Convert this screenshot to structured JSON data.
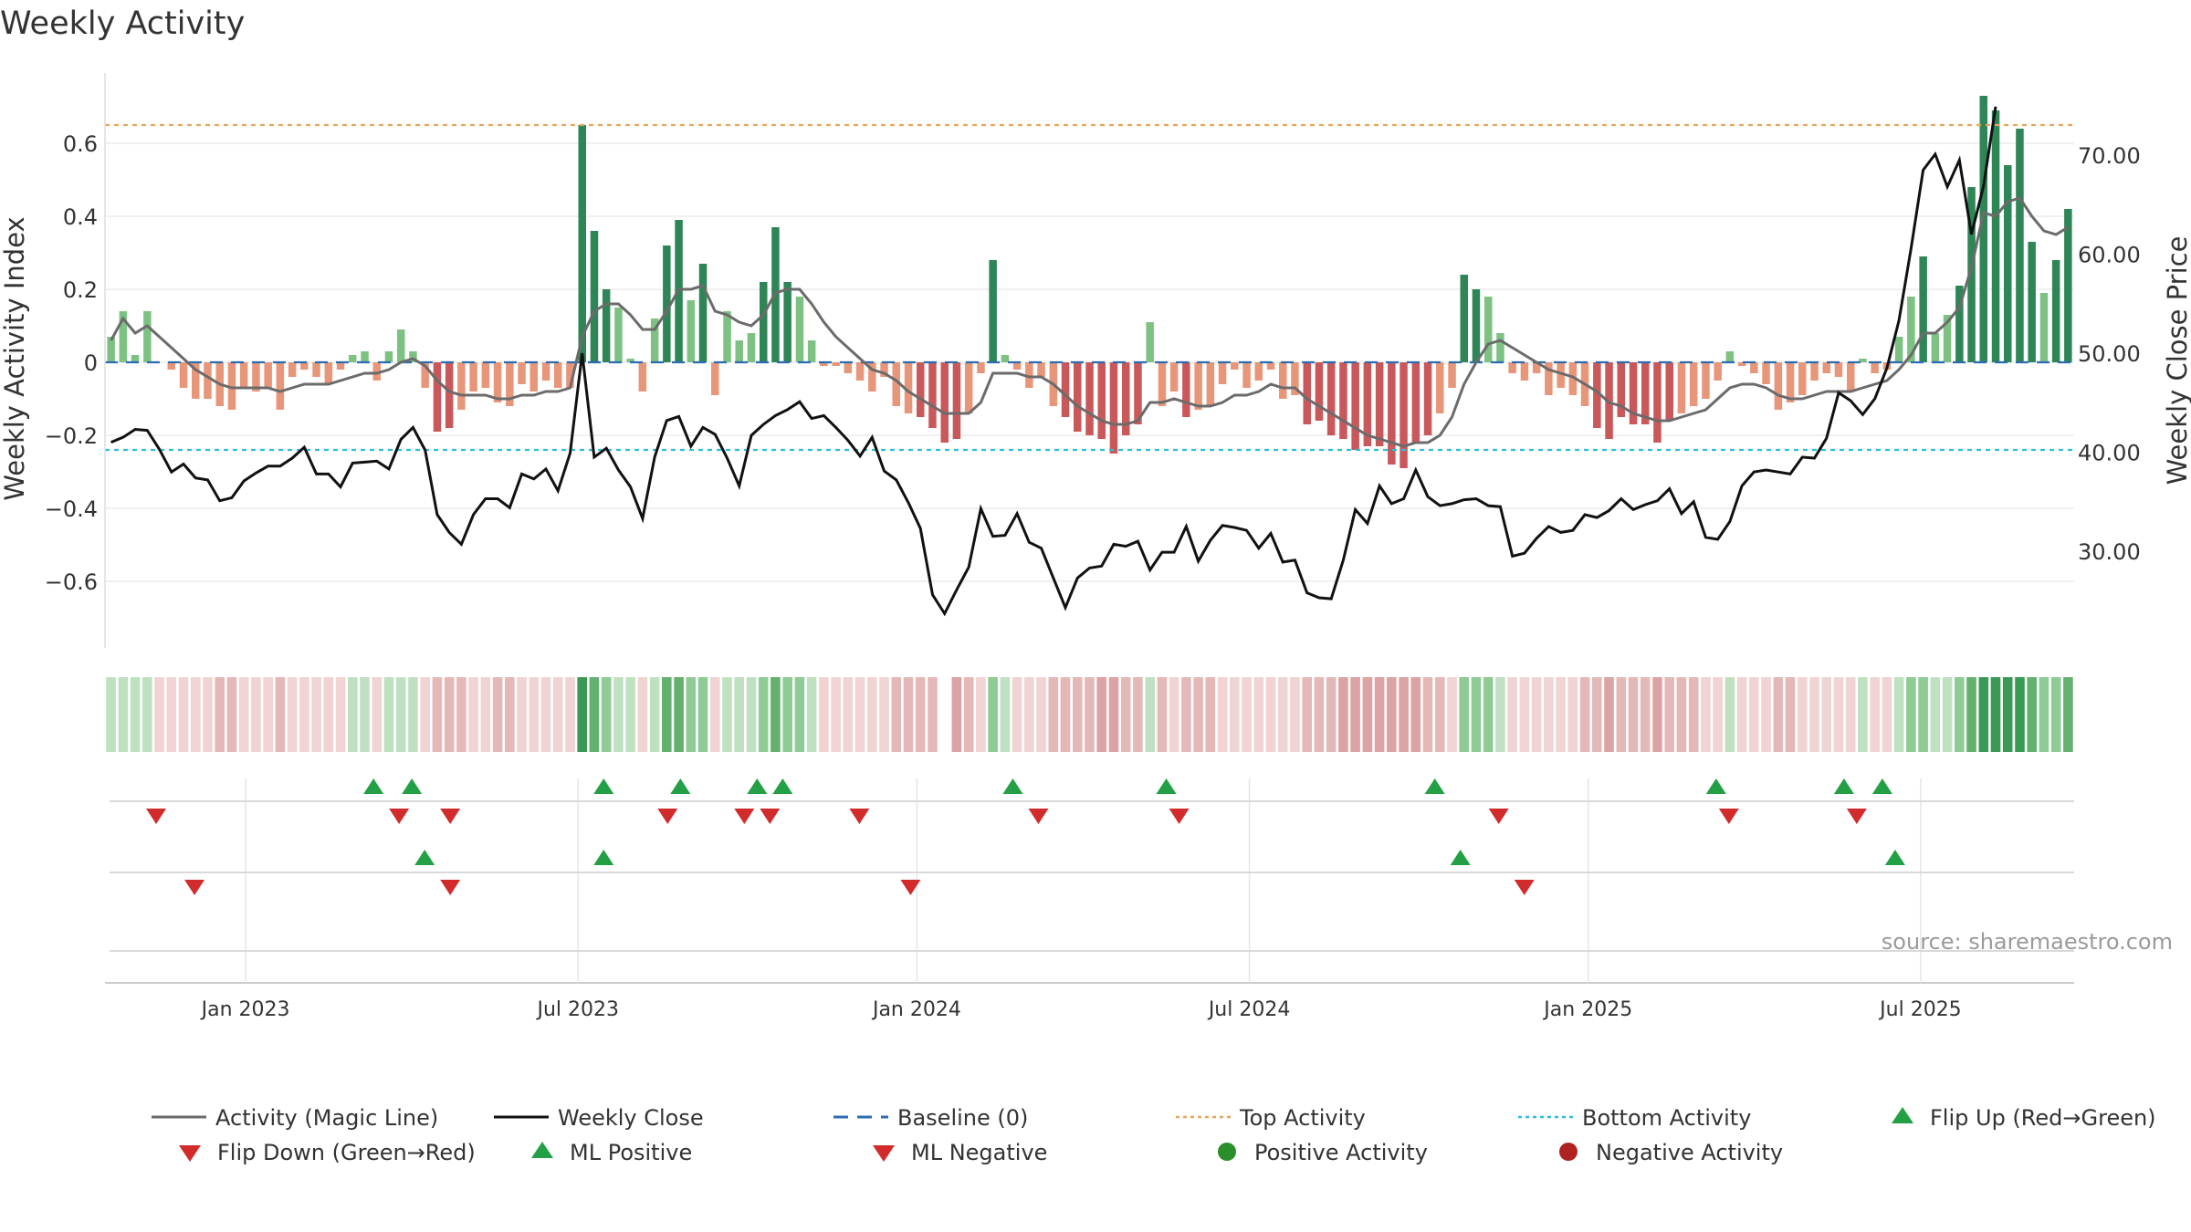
{
  "chart_data": {
    "type": "bar",
    "title": "Weekly Activity",
    "ylabel": "Weekly Activity Index",
    "ylabel_right": "Weekly Close Price",
    "ylim": [
      -0.8,
      0.8
    ],
    "ylim_right": [
      20,
      80
    ],
    "y_ticks": [
      0.6,
      0.4,
      0.2,
      0,
      -0.2,
      -0.4,
      -0.6
    ],
    "y_tick_labels": [
      "0.6",
      "0.4",
      "0.2",
      "0",
      "−0.2",
      "−0.4",
      "−0.6"
    ],
    "y_right_ticks": [
      70,
      60,
      50,
      40,
      30
    ],
    "y_right_tick_labels": [
      "70.00",
      "60.00",
      "50.00",
      "40.00",
      "30.00"
    ],
    "x_range_weeks": [
      0,
      154
    ],
    "x_ticks": [
      {
        "label": "Jan 2023",
        "week": 11
      },
      {
        "label": "Jul 2023",
        "week": 37
      },
      {
        "label": "Jan 2024",
        "week": 63.5
      },
      {
        "label": "Jul 2024",
        "week": 89.5
      },
      {
        "label": "Jan 2025",
        "week": 116
      },
      {
        "label": "Jul 2025",
        "week": 142
      }
    ],
    "top_activity": 0.65,
    "bottom_activity": -0.24,
    "baseline": 0,
    "source": "source: sharemaestro.com",
    "series": [
      {
        "name": "Activity",
        "type": "bar",
        "values": [
          0.07,
          0.14,
          0.02,
          0.14,
          0,
          -0.02,
          -0.07,
          -0.1,
          -0.1,
          -0.12,
          -0.13,
          -0.07,
          -0.08,
          -0.07,
          -0.13,
          -0.04,
          -0.02,
          -0.04,
          -0.06,
          -0.02,
          0.02,
          0.03,
          -0.05,
          0.03,
          0.09,
          0.03,
          -0.07,
          -0.19,
          -0.18,
          -0.13,
          -0.08,
          -0.07,
          -0.11,
          -0.12,
          -0.06,
          -0.08,
          -0.05,
          -0.07,
          -0.07,
          0.65,
          0.36,
          0.2,
          0.15,
          0.01,
          -0.08,
          0.12,
          0.32,
          0.39,
          0.17,
          0.27,
          -0.09,
          0.14,
          0.06,
          0.08,
          0.22,
          0.37,
          0.22,
          0.18,
          0.06,
          -0.01,
          -0.01,
          -0.03,
          -0.05,
          -0.08,
          -0.04,
          -0.12,
          -0.14,
          -0.15,
          -0.18,
          -0.22,
          -0.21,
          -0.14,
          -0.03,
          0.28,
          0.02,
          -0.02,
          -0.07,
          -0.04,
          -0.12,
          -0.15,
          -0.19,
          -0.2,
          -0.21,
          -0.25,
          -0.2,
          -0.17,
          0.11,
          -0.12,
          -0.08,
          -0.15,
          -0.13,
          -0.12,
          -0.06,
          -0.02,
          -0.07,
          -0.05,
          -0.02,
          -0.1,
          -0.09,
          -0.17,
          -0.16,
          -0.2,
          -0.21,
          -0.24,
          -0.23,
          -0.23,
          -0.28,
          -0.29,
          -0.22,
          -0.2,
          -0.14,
          -0.07,
          0.24,
          0.2,
          0.18,
          0.08,
          -0.03,
          -0.05,
          -0.03,
          -0.09,
          -0.07,
          -0.09,
          -0.12,
          -0.18,
          -0.21,
          -0.15,
          -0.17,
          -0.17,
          -0.22,
          -0.16,
          -0.14,
          -0.12,
          -0.1,
          -0.05,
          0.03,
          -0.01,
          -0.03,
          -0.06,
          -0.13,
          -0.11,
          -0.09,
          -0.05,
          -0.03,
          -0.04,
          -0.08,
          0.01,
          -0.03,
          -0.02,
          0.07,
          0.18,
          0.29,
          0.08,
          0.13,
          0.21,
          0.48,
          0.73,
          0.69,
          0.54,
          0.64,
          0.33,
          0.19,
          0.28,
          0.42
        ]
      },
      {
        "name": "Activity (Magic Line)",
        "type": "line",
        "values": [
          0.06,
          0.12,
          0.08,
          0.1,
          0.07,
          0.04,
          0.01,
          -0.02,
          -0.04,
          -0.06,
          -0.07,
          -0.07,
          -0.07,
          -0.07,
          -0.08,
          -0.07,
          -0.06,
          -0.06,
          -0.06,
          -0.05,
          -0.04,
          -0.03,
          -0.03,
          -0.02,
          0,
          0.01,
          -0.01,
          -0.05,
          -0.08,
          -0.09,
          -0.09,
          -0.09,
          -0.1,
          -0.1,
          -0.09,
          -0.09,
          -0.08,
          -0.08,
          -0.07,
          0.07,
          0.14,
          0.16,
          0.16,
          0.13,
          0.09,
          0.09,
          0.14,
          0.2,
          0.2,
          0.21,
          0.14,
          0.13,
          0.11,
          0.1,
          0.13,
          0.19,
          0.2,
          0.2,
          0.16,
          0.11,
          0.07,
          0.04,
          0.01,
          -0.02,
          -0.03,
          -0.05,
          -0.08,
          -0.1,
          -0.12,
          -0.14,
          -0.14,
          -0.14,
          -0.11,
          -0.03,
          -0.03,
          -0.03,
          -0.04,
          -0.04,
          -0.06,
          -0.09,
          -0.12,
          -0.14,
          -0.16,
          -0.17,
          -0.17,
          -0.16,
          -0.11,
          -0.11,
          -0.1,
          -0.11,
          -0.12,
          -0.12,
          -0.11,
          -0.09,
          -0.09,
          -0.08,
          -0.06,
          -0.07,
          -0.07,
          -0.1,
          -0.12,
          -0.14,
          -0.16,
          -0.18,
          -0.2,
          -0.21,
          -0.22,
          -0.23,
          -0.22,
          -0.22,
          -0.2,
          -0.15,
          -0.06,
          0,
          0.05,
          0.06,
          0.04,
          0.02,
          0,
          -0.02,
          -0.03,
          -0.04,
          -0.06,
          -0.08,
          -0.11,
          -0.12,
          -0.14,
          -0.15,
          -0.16,
          -0.16,
          -0.15,
          -0.14,
          -0.13,
          -0.1,
          -0.07,
          -0.06,
          -0.06,
          -0.07,
          -0.09,
          -0.1,
          -0.1,
          -0.09,
          -0.08,
          -0.08,
          -0.08,
          -0.07,
          -0.06,
          -0.05,
          -0.02,
          0.02,
          0.08,
          0.08,
          0.11,
          0.15,
          0.26,
          0.41,
          0.4,
          0.44,
          0.45,
          0.4,
          0.36,
          0.35,
          0.37
        ]
      },
      {
        "name": "Weekly Close",
        "type": "line",
        "values": [
          41,
          41.5,
          42.3,
          42.2,
          40.3,
          38,
          38.8,
          37.4,
          37.2,
          35.1,
          35.4,
          37.1,
          37.9,
          38.6,
          38.6,
          39.4,
          40.5,
          37.8,
          37.8,
          36.5,
          38.9,
          39,
          39.1,
          38.3,
          41.3,
          42.5,
          40.2,
          33.7,
          31.9,
          30.7,
          33.7,
          35.3,
          35.3,
          34.4,
          37.8,
          37.3,
          38.3,
          36.1,
          39.9,
          50,
          39.5,
          40.4,
          38.2,
          36.5,
          33.3,
          39.5,
          43.2,
          43.6,
          40.6,
          42.5,
          41.8,
          39.4,
          36.6,
          41.7,
          42.8,
          43.7,
          44.3,
          45.1,
          43.4,
          43.7,
          42.5,
          41.2,
          39.6,
          41.5,
          38.1,
          37.2,
          34.9,
          32.3,
          25.6,
          23.7,
          26.1,
          28.4,
          34.3,
          31.5,
          31.6,
          33.8,
          30.9,
          30.3,
          27.3,
          24.3,
          27.3,
          28.3,
          28.5,
          30.7,
          30.5,
          31,
          28.1,
          29.9,
          29.9,
          32.5,
          29,
          31.1,
          32.6,
          32.4,
          32.1,
          30.3,
          31.8,
          28.9,
          29.1,
          25.8,
          25.3,
          25.2,
          29.1,
          34.2,
          32.8,
          36.6,
          34.8,
          35.3,
          38.2,
          35.5,
          34.6,
          34.8,
          35.2,
          35.3,
          34.6,
          34.5,
          29.5,
          29.8,
          31.3,
          32.5,
          31.9,
          32.1,
          33.7,
          33.4,
          34.1,
          35.3,
          34.2,
          34.7,
          35.1,
          36.3,
          33.8,
          35,
          31.4,
          31.2,
          33,
          36.6,
          38,
          38.2,
          38,
          37.8,
          39.5,
          39.4,
          41.4,
          46,
          45.2,
          43.8,
          45.4,
          48.5,
          53.3,
          60.6,
          68.5,
          70.1,
          66.8,
          69.5,
          62,
          66.9,
          74.9
        ]
      }
    ],
    "heatmap_strip": {
      "name": "Activity strip",
      "missing_week": 69
    },
    "flip_up_weeks": [
      21,
      24,
      39,
      45,
      51,
      53,
      71,
      83,
      104,
      126,
      136,
      139
    ],
    "flip_down_weeks": [
      4,
      23,
      27,
      44,
      50,
      52,
      59,
      73,
      84,
      109,
      127,
      137
    ],
    "ml_positive_weeks": [
      25,
      39,
      106,
      140
    ],
    "ml_negative_weeks": [
      7,
      27,
      63,
      111
    ],
    "legend": [
      {
        "label": "Activity (Magic Line)",
        "symbol": "line-grey"
      },
      {
        "label": "Weekly Close",
        "symbol": "line-black"
      },
      {
        "label": "Baseline (0)",
        "symbol": "dash-blue"
      },
      {
        "label": "Top Activity",
        "symbol": "dot-orange"
      },
      {
        "label": "Bottom Activity",
        "symbol": "dot-cyan"
      },
      {
        "label": "Flip Up (Red→Green)",
        "symbol": "tri-up-green"
      },
      {
        "label": "Flip Down (Green→Red)",
        "symbol": "tri-down-red"
      },
      {
        "label": "ML Positive",
        "symbol": "tri-up-green"
      },
      {
        "label": "ML Negative",
        "symbol": "tri-down-red"
      },
      {
        "label": "Positive Activity",
        "symbol": "circle-green"
      },
      {
        "label": "Negative Activity",
        "symbol": "circle-red"
      }
    ],
    "colors": {
      "pos_dark": "#2e8555",
      "pos_light": "#7dc283",
      "neg_dark": "#c9585b",
      "neg_light": "#e8967a",
      "magic_line": "#6b6b6b",
      "close_line": "#111111",
      "baseline": "#2b6cb0",
      "top": "#e8a55a",
      "bottom": "#2bbfd8",
      "tri_green": "#23a045",
      "tri_red": "#d12b2b",
      "circle_green": "#2a8f2a",
      "circle_red": "#b02222"
    }
  }
}
